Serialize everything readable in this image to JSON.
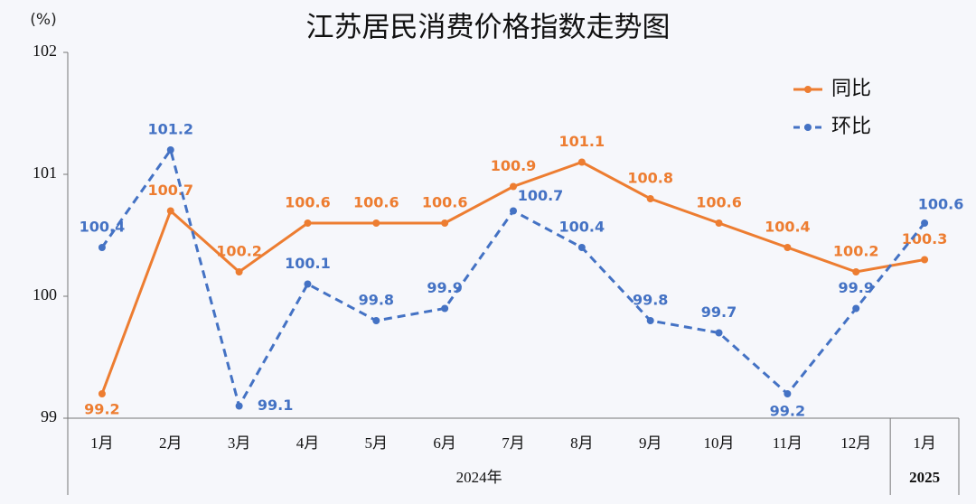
{
  "chart_data": {
    "type": "line",
    "title": "江苏居民消费价格指数走势图",
    "y_label": "(%)",
    "categories": [
      "1月",
      "2月",
      "3月",
      "4月",
      "5月",
      "6月",
      "7月",
      "8月",
      "9月",
      "10月",
      "11月",
      "12月",
      "1月"
    ],
    "groups": [
      "2024年",
      "2025"
    ],
    "series": [
      {
        "name": "同比",
        "color": "#ed7d31",
        "dashed": false,
        "values": [
          99.2,
          100.7,
          100.2,
          100.6,
          100.6,
          100.6,
          100.9,
          101.1,
          100.8,
          100.6,
          100.4,
          100.2,
          100.3
        ]
      },
      {
        "name": "环比",
        "color": "#4472c4",
        "dashed": true,
        "values": [
          100.4,
          101.2,
          99.1,
          100.1,
          99.8,
          99.9,
          100.7,
          100.4,
          99.8,
          99.7,
          99.2,
          99.9,
          100.6
        ]
      }
    ],
    "ylim": [
      99,
      102
    ],
    "yticks": [
      99,
      100,
      101,
      102
    ],
    "legend": "upper right"
  }
}
